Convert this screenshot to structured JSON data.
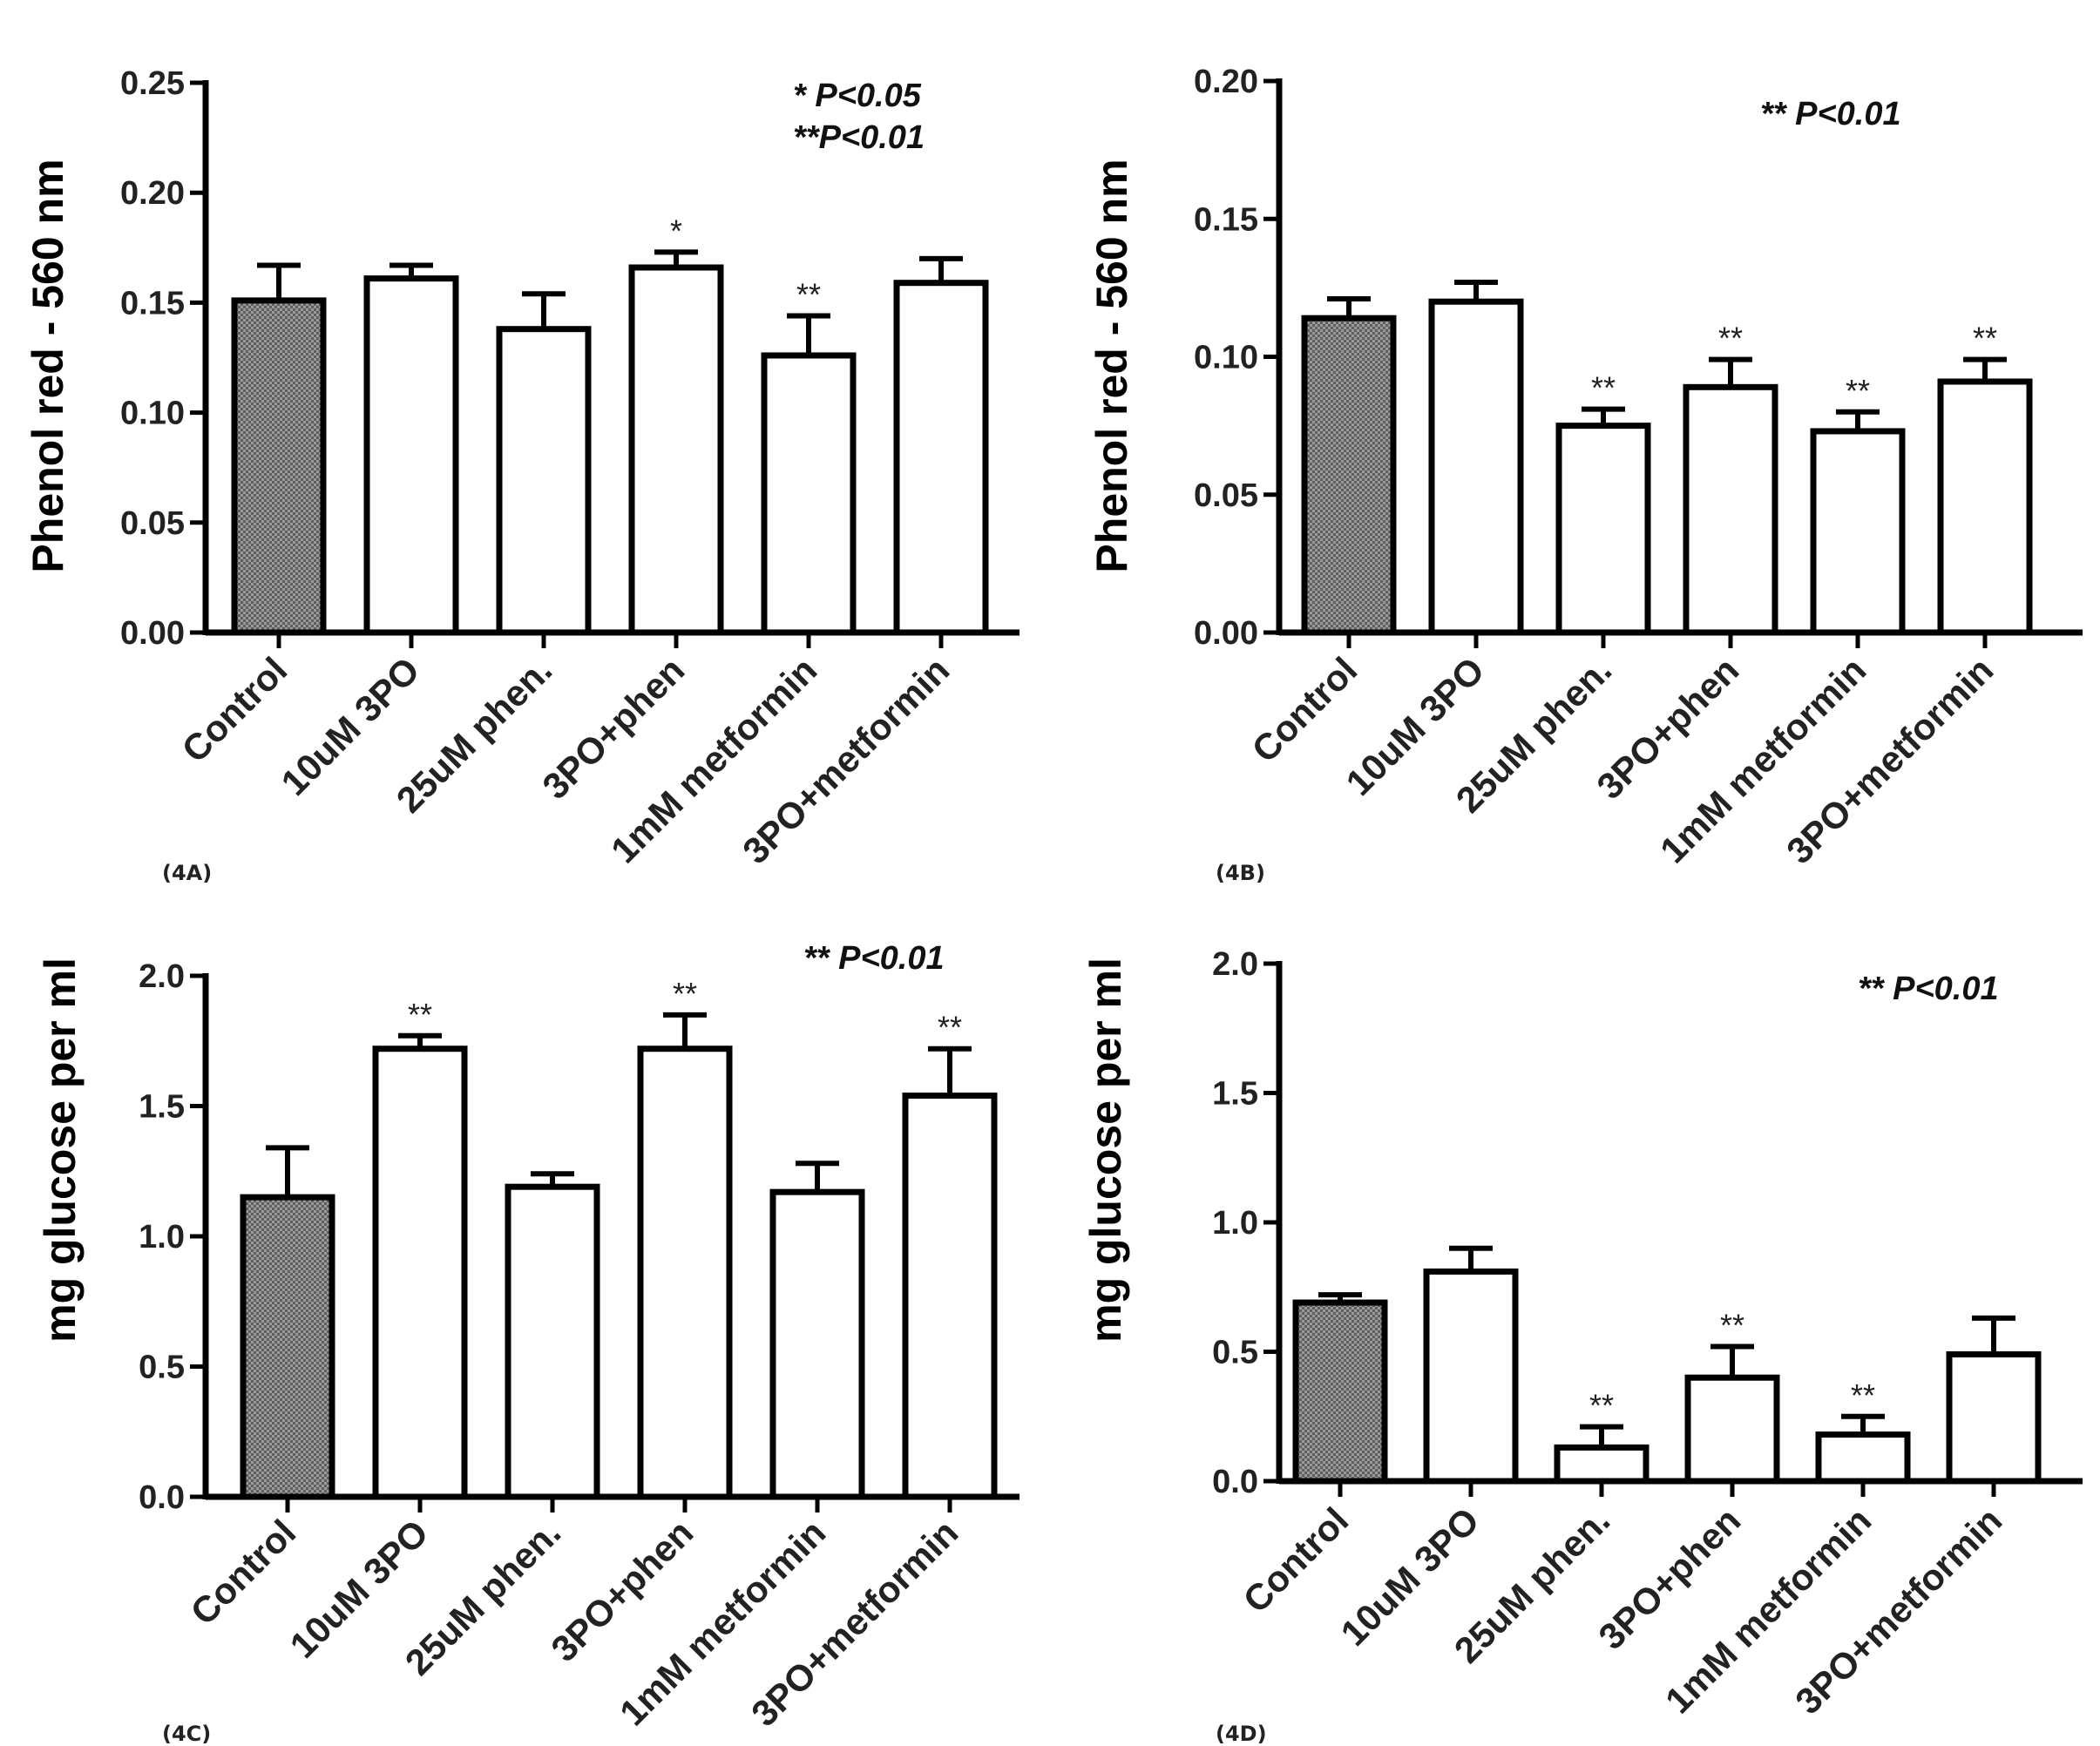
{
  "colors": {
    "control_fill": "#8a8a8a",
    "bar_fill": "#ffffff",
    "axis": "#000000"
  },
  "chart_data": [
    {
      "type": "bar",
      "panel": "(4A)",
      "ylabel": "Phenol red - 560 nm",
      "ylim": [
        0,
        0.25
      ],
      "yticks": [
        "0.00",
        "0.05",
        "0.10",
        "0.15",
        "0.20",
        "0.25"
      ],
      "categories": [
        "Control",
        "10uM 3PO",
        "25uM phen.",
        "3PO+phen",
        "1mM metformin",
        "3PO+metformin"
      ],
      "values": [
        0.151,
        0.161,
        0.138,
        0.166,
        0.126,
        0.159
      ],
      "errors": [
        0.016,
        0.006,
        0.016,
        0.007,
        0.018,
        0.011
      ],
      "significance": [
        "",
        "",
        "",
        "*",
        "**",
        ""
      ],
      "legend": [
        "* P<0.05",
        "**P<0.01"
      ]
    },
    {
      "type": "bar",
      "panel": "(4B)",
      "ylabel": "Phenol red - 560 nm",
      "ylim": [
        0,
        0.2
      ],
      "yticks": [
        "0.00",
        "0.05",
        "0.10",
        "0.15",
        "0.20"
      ],
      "categories": [
        "Control",
        "10uM 3PO",
        "25uM phen.",
        "3PO+phen",
        "1mM metformin",
        "3PO+metformin"
      ],
      "values": [
        0.114,
        0.12,
        0.075,
        0.089,
        0.073,
        0.091
      ],
      "errors": [
        0.007,
        0.007,
        0.006,
        0.01,
        0.007,
        0.008
      ],
      "significance": [
        "",
        "",
        "**",
        "**",
        "**",
        "**"
      ],
      "legend": [
        "**  P<0.01"
      ]
    },
    {
      "type": "bar",
      "panel": "(4C)",
      "ylabel": "mg glucose per ml",
      "ylim": [
        0,
        2.0
      ],
      "yticks": [
        "0.0",
        "0.5",
        "1.0",
        "1.5",
        "2.0"
      ],
      "categories": [
        "Control",
        "10uM 3PO",
        "25uM phen.",
        "3PO+phen",
        "1mM metformin",
        "3PO+metformin"
      ],
      "values": [
        1.15,
        1.72,
        1.19,
        1.72,
        1.17,
        1.54
      ],
      "errors": [
        0.19,
        0.05,
        0.05,
        0.13,
        0.11,
        0.18
      ],
      "significance": [
        "",
        "**",
        "",
        "**",
        "",
        "**"
      ],
      "legend": [
        "**  P<0.01"
      ]
    },
    {
      "type": "bar",
      "panel": "(4D)",
      "ylabel": "mg glucose per ml",
      "ylim": [
        0,
        2.0
      ],
      "yticks": [
        "0.0",
        "0.5",
        "1.0",
        "1.5",
        "2.0"
      ],
      "categories": [
        "Control",
        "10uM 3PO",
        "25uM phen.",
        "3PO+phen",
        "1mM metformin",
        "3PO+metformin"
      ],
      "values": [
        0.69,
        0.81,
        0.13,
        0.4,
        0.18,
        0.49
      ],
      "errors": [
        0.03,
        0.09,
        0.08,
        0.12,
        0.07,
        0.14
      ],
      "significance": [
        "",
        "",
        "**",
        "**",
        "**",
        ""
      ],
      "legend": [
        "**  P<0.01"
      ]
    }
  ]
}
